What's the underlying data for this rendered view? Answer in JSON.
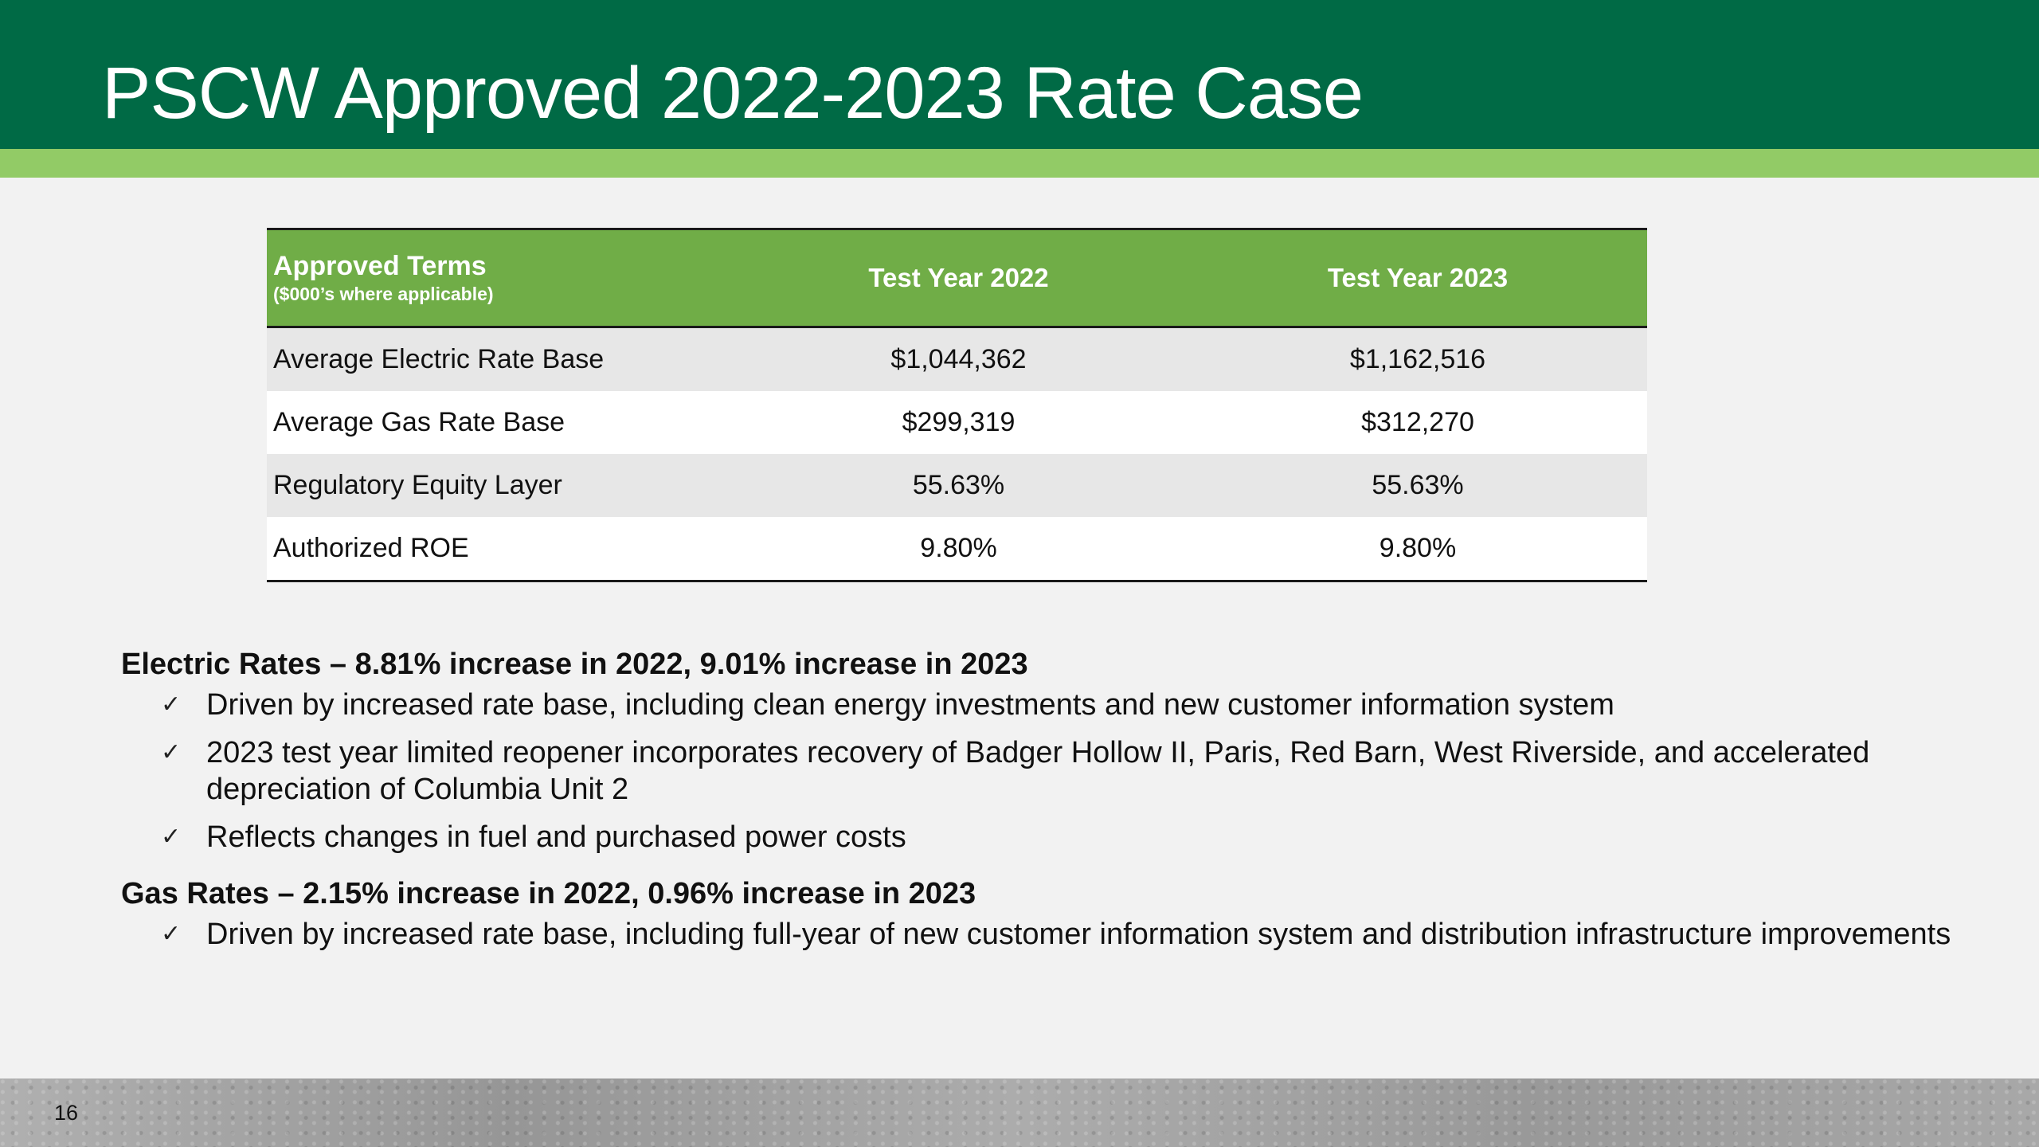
{
  "slide": {
    "title": "PSCW Approved 2022-2023 Rate Case",
    "page_number": "16"
  },
  "table": {
    "header": {
      "label": "Approved Terms",
      "sublabel": "($000’s where applicable)",
      "col1": "Test Year 2022",
      "col2": "Test Year 2023"
    },
    "rows": [
      {
        "label": "Average Electric Rate Base",
        "y2022": "$1,044,362",
        "y2023": "$1,162,516"
      },
      {
        "label": "Average Gas Rate Base",
        "y2022": "$299,319",
        "y2023": "$312,270"
      },
      {
        "label": "Regulatory Equity Layer",
        "y2022": "55.63%",
        "y2023": "55.63%"
      },
      {
        "label": "Authorized ROE",
        "y2022": "9.80%",
        "y2023": "9.80%"
      }
    ]
  },
  "electric": {
    "heading": "Electric Rates – 8.81% increase in 2022,  9.01% increase in 2023",
    "items": [
      "Driven by increased rate base, including clean energy investments and new customer information system",
      "2023 test year limited reopener incorporates recovery of Badger Hollow II, Paris, Red Barn, West Riverside, and accelerated depreciation of Columbia Unit 2",
      "Reflects changes in fuel and purchased power costs"
    ]
  },
  "gas": {
    "heading": "Gas Rates – 2.15% increase in 2022,  0.96% increase in 2023",
    "items": [
      "Driven by increased rate base, including full-year of new customer information system and distribution infrastructure improvements"
    ]
  },
  "icons": {
    "check": "✓"
  },
  "colors": {
    "title_bar": "#006a45",
    "accent": "#92cb66",
    "table_header": "#70ad47"
  }
}
